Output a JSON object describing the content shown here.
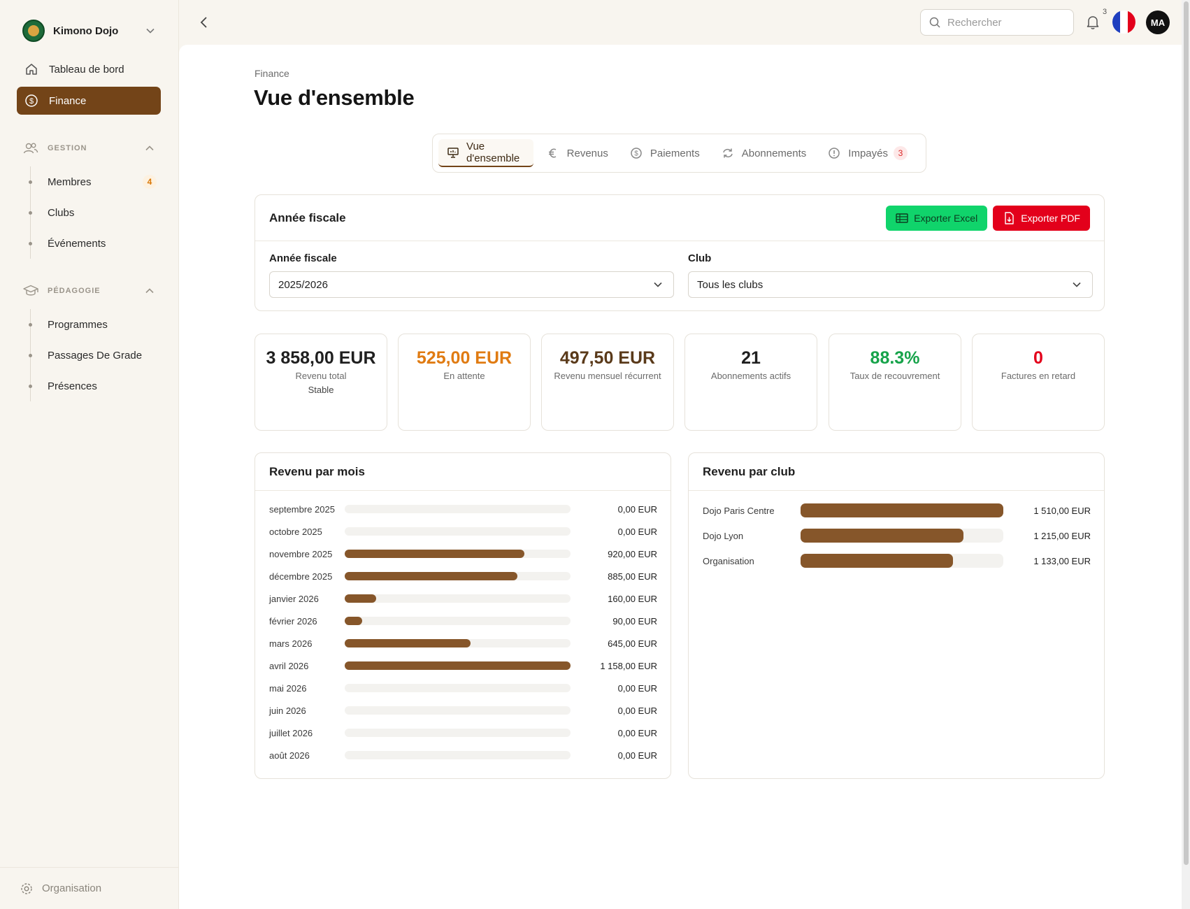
{
  "org": {
    "name": "Kimono Dojo"
  },
  "sidebar": {
    "nav": [
      {
        "label": "Tableau de bord",
        "icon": "home-icon",
        "active": false
      },
      {
        "label": "Finance",
        "icon": "dollar-circle-icon",
        "active": true
      }
    ],
    "gestion": {
      "title": "GESTION",
      "items": [
        {
          "label": "Membres",
          "badge": "4"
        },
        {
          "label": "Clubs"
        },
        {
          "label": "Événements"
        }
      ]
    },
    "pedagogie": {
      "title": "PÉDAGOGIE",
      "items": [
        {
          "label": "Programmes"
        },
        {
          "label": "Passages De Grade"
        },
        {
          "label": "Présences"
        }
      ]
    },
    "footer": {
      "label": "Organisation"
    }
  },
  "topbar": {
    "search_placeholder": "Rechercher",
    "notifications_count": "3",
    "avatar_initials": "MA"
  },
  "page": {
    "breadcrumb": "Finance",
    "title": "Vue d'ensemble"
  },
  "tabs": [
    {
      "label": "Vue d'ensemble",
      "icon": "presentation-icon",
      "active": true
    },
    {
      "label": "Revenus",
      "icon": "euro-icon",
      "active": false
    },
    {
      "label": "Paiements",
      "icon": "dollar-circle-icon",
      "active": false
    },
    {
      "label": "Abonnements",
      "icon": "refresh-icon",
      "active": false
    },
    {
      "label": "Impayés",
      "icon": "alert-circle-icon",
      "active": false,
      "badge": "3"
    }
  ],
  "fiscal": {
    "title": "Année fiscale",
    "export_excel": "Exporter Excel",
    "export_pdf": "Exporter PDF",
    "year_label": "Année fiscale",
    "year_value": "2025/2026",
    "club_label": "Club",
    "club_value": "Tous les clubs"
  },
  "kpis": [
    {
      "value": "3 858,00 EUR",
      "label": "Revenu total",
      "sub": "Stable",
      "color": "#1f1f1f"
    },
    {
      "value": "525,00 EUR",
      "label": "En attente",
      "color": "#e07b12"
    },
    {
      "value": "497,50 EUR",
      "label": "Revenu mensuel récurrent",
      "color": "#5a3a1a"
    },
    {
      "value": "21",
      "label": "Abonnements actifs",
      "color": "#1f1f1f"
    },
    {
      "value": "88.3%",
      "label": "Taux de recouvrement",
      "color": "#16a34a"
    },
    {
      "value": "0",
      "label": "Factures en retard",
      "color": "#e3001b"
    }
  ],
  "colors": {
    "accent": "#734418",
    "bar": "#86562a"
  },
  "chart_data": [
    {
      "type": "bar",
      "title": "Revenu par mois",
      "categories": [
        "septembre 2025",
        "octobre 2025",
        "novembre 2025",
        "décembre 2025",
        "janvier 2026",
        "février 2026",
        "mars 2026",
        "avril 2026",
        "mai 2026",
        "juin 2026",
        "juillet 2026",
        "août 2026"
      ],
      "values": [
        0,
        0,
        920,
        885,
        160,
        90,
        645,
        1158,
        0,
        0,
        0,
        0
      ],
      "labels": [
        "0,00 EUR",
        "0,00 EUR",
        "920,00 EUR",
        "885,00 EUR",
        "160,00 EUR",
        "90,00 EUR",
        "645,00 EUR",
        "1 158,00 EUR",
        "0,00 EUR",
        "0,00 EUR",
        "0,00 EUR",
        "0,00 EUR"
      ],
      "max": 1158
    },
    {
      "type": "bar",
      "title": "Revenu par club",
      "categories": [
        "Dojo Paris Centre",
        "Dojo Lyon",
        "Organisation"
      ],
      "values": [
        1510,
        1215,
        1133
      ],
      "labels": [
        "1 510,00 EUR",
        "1 215,00 EUR",
        "1 133,00 EUR"
      ],
      "max": 1510
    }
  ]
}
